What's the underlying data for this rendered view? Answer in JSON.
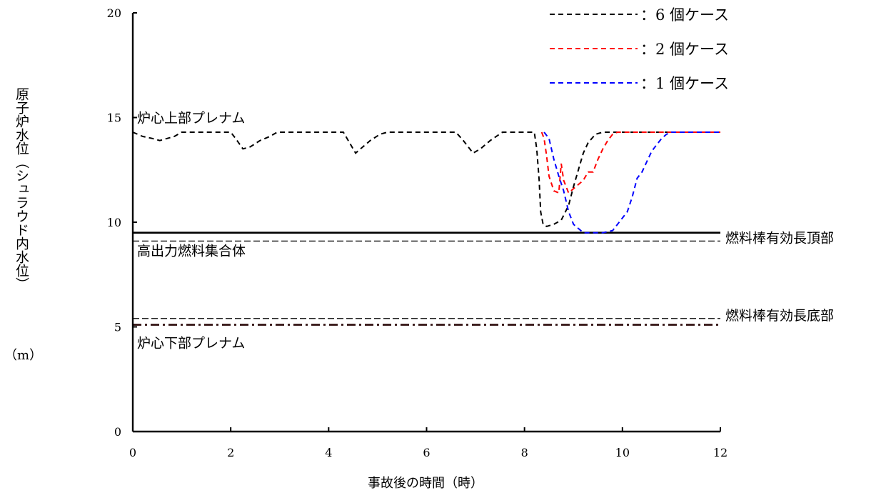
{
  "chart_data": {
    "type": "line",
    "xlabel": "事故後の時間（時）",
    "ylabel": "原子炉水位（シュラウド内水位）",
    "yunit": "（m）",
    "xlim": [
      0,
      12
    ],
    "ylim": [
      0,
      20
    ],
    "xticks": [
      0,
      2,
      4,
      6,
      8,
      10,
      12
    ],
    "yticks": [
      0,
      5,
      10,
      15,
      20
    ],
    "legend_position": "top-right",
    "series": [
      {
        "name": "：6 個ケース",
        "color": "#000000",
        "style": "dashed",
        "x": [
          0,
          0.2,
          0.4,
          0.55,
          0.7,
          0.85,
          1.0,
          2.0,
          2.1,
          2.25,
          2.4,
          2.6,
          2.8,
          2.95,
          4.3,
          4.4,
          4.55,
          4.7,
          4.85,
          5.05,
          5.2,
          6.6,
          6.75,
          6.95,
          7.1,
          7.3,
          7.55,
          8.2,
          8.25,
          8.3,
          8.33,
          8.38,
          8.45,
          8.6,
          8.75,
          8.9,
          9.0,
          9.1,
          9.2,
          9.3,
          9.45,
          9.6,
          12.0
        ],
        "y": [
          14.3,
          14.1,
          14.0,
          13.9,
          14.0,
          14.1,
          14.3,
          14.3,
          14.0,
          13.5,
          13.6,
          13.9,
          14.1,
          14.3,
          14.3,
          13.9,
          13.3,
          13.6,
          13.9,
          14.2,
          14.3,
          14.3,
          13.9,
          13.3,
          13.5,
          13.9,
          14.3,
          14.3,
          13.5,
          12.0,
          10.5,
          9.9,
          9.8,
          9.9,
          10.1,
          10.8,
          11.7,
          12.5,
          13.3,
          13.8,
          14.2,
          14.3,
          14.3
        ]
      },
      {
        "name": "：2 個ケース",
        "color": "#ff0000",
        "style": "dashed",
        "x": [
          8.35,
          8.4,
          8.45,
          8.5,
          8.6,
          8.7,
          8.75,
          8.8,
          8.9,
          9.0,
          9.1,
          9.2,
          9.3,
          9.4,
          9.5,
          9.6,
          9.7,
          9.8,
          9.9,
          10.0,
          12.0
        ],
        "y": [
          14.3,
          14.0,
          13.2,
          12.2,
          11.5,
          11.4,
          12.8,
          12.0,
          11.4,
          11.6,
          11.8,
          12.0,
          12.4,
          12.4,
          13.0,
          13.5,
          13.9,
          14.2,
          14.3,
          14.3,
          14.3
        ]
      },
      {
        "name": "：1 個ケース",
        "color": "#0000ff",
        "style": "dashed",
        "x": [
          8.4,
          8.5,
          8.6,
          8.7,
          8.8,
          8.9,
          9.0,
          9.1,
          9.2,
          9.4,
          9.6,
          9.8,
          10.0,
          10.1,
          10.2,
          10.3,
          10.4,
          10.5,
          10.6,
          10.7,
          10.8,
          10.9,
          11.0,
          11.1,
          12.0
        ],
        "y": [
          14.3,
          14.0,
          13.0,
          12.2,
          11.5,
          10.5,
          9.9,
          9.7,
          9.5,
          9.5,
          9.5,
          9.6,
          10.2,
          10.5,
          11.2,
          12.1,
          12.4,
          12.9,
          13.4,
          13.7,
          14.0,
          14.2,
          14.3,
          14.3,
          14.3
        ]
      }
    ],
    "reference_lines": [
      {
        "label": "高出力燃料集合体",
        "y": 9.5,
        "style": "solid",
        "color": "#000000",
        "width": 2.6,
        "label_side": "left-below"
      },
      {
        "label": "燃料棒有効長頂部",
        "y": 9.1,
        "style": "dashed",
        "color": "#000000",
        "width": 1.2,
        "label_side": "right"
      },
      {
        "label": "燃料棒有効長底部",
        "y": 5.4,
        "style": "dashed",
        "color": "#000000",
        "width": 1.2,
        "label_side": "right"
      },
      {
        "label": "炉心下部プレナム",
        "y": 5.1,
        "style": "dashdot",
        "color": "#2b0a0a",
        "width": 2.6,
        "label_side": "left-below"
      }
    ],
    "annotations": [
      {
        "text": "炉心上部プレナム",
        "x": 0,
        "y": 15.0
      }
    ]
  }
}
